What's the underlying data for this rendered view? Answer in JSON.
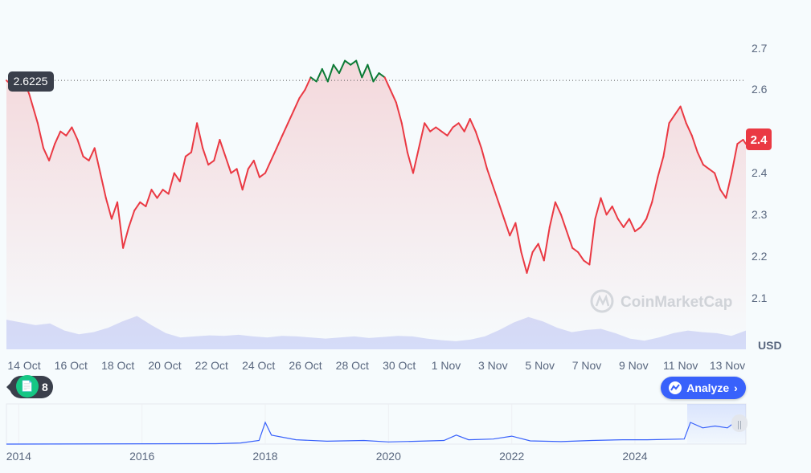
{
  "chart_data": {
    "type": "line",
    "ylim": [
      2.1,
      2.7
    ],
    "yticks": [
      "2.7",
      "2.6",
      "2.4",
      "2.4",
      "2.3",
      "2.2",
      "2.1"
    ],
    "yunit": "USD",
    "xticks": [
      "14 Oct",
      "16 Oct",
      "18 Oct",
      "20 Oct",
      "22 Oct",
      "24 Oct",
      "26 Oct",
      "28 Oct",
      "30 Oct",
      "1 Nov",
      "3 Nov",
      "5 Nov",
      "7 Nov",
      "9 Nov",
      "11 Nov",
      "13 Nov"
    ],
    "reference_label": "2.6225",
    "reference_value": 2.6225,
    "current_label": "2.4",
    "price_points": [
      [
        0,
        2.6225
      ],
      [
        0.3,
        2.605
      ],
      [
        0.6,
        2.625
      ],
      [
        0.8,
        2.59
      ],
      [
        1.1,
        2.52
      ],
      [
        1.3,
        2.46
      ],
      [
        1.5,
        2.43
      ],
      [
        1.7,
        2.47
      ],
      [
        1.9,
        2.5
      ],
      [
        2.1,
        2.49
      ],
      [
        2.3,
        2.51
      ],
      [
        2.5,
        2.48
      ],
      [
        2.7,
        2.44
      ],
      [
        2.9,
        2.43
      ],
      [
        3.1,
        2.46
      ],
      [
        3.3,
        2.4
      ],
      [
        3.5,
        2.34
      ],
      [
        3.7,
        2.29
      ],
      [
        3.9,
        2.33
      ],
      [
        4.1,
        2.22
      ],
      [
        4.3,
        2.27
      ],
      [
        4.5,
        2.31
      ],
      [
        4.7,
        2.33
      ],
      [
        4.9,
        2.32
      ],
      [
        5.1,
        2.36
      ],
      [
        5.3,
        2.34
      ],
      [
        5.5,
        2.36
      ],
      [
        5.7,
        2.35
      ],
      [
        5.9,
        2.4
      ],
      [
        6.1,
        2.38
      ],
      [
        6.3,
        2.44
      ],
      [
        6.5,
        2.45
      ],
      [
        6.7,
        2.52
      ],
      [
        6.9,
        2.46
      ],
      [
        7.1,
        2.42
      ],
      [
        7.3,
        2.43
      ],
      [
        7.5,
        2.48
      ],
      [
        7.7,
        2.44
      ],
      [
        7.9,
        2.4
      ],
      [
        8.1,
        2.41
      ],
      [
        8.3,
        2.36
      ],
      [
        8.5,
        2.41
      ],
      [
        8.7,
        2.43
      ],
      [
        8.9,
        2.39
      ],
      [
        9.1,
        2.4
      ],
      [
        9.3,
        2.43
      ],
      [
        9.5,
        2.46
      ],
      [
        9.7,
        2.49
      ],
      [
        9.9,
        2.52
      ],
      [
        10.1,
        2.55
      ],
      [
        10.3,
        2.58
      ],
      [
        10.5,
        2.6
      ],
      [
        10.7,
        2.63
      ],
      [
        10.9,
        2.62
      ],
      [
        11.1,
        2.65
      ],
      [
        11.3,
        2.62
      ],
      [
        11.5,
        2.66
      ],
      [
        11.7,
        2.64
      ],
      [
        11.9,
        2.67
      ],
      [
        12.1,
        2.66
      ],
      [
        12.3,
        2.67
      ],
      [
        12.5,
        2.63
      ],
      [
        12.7,
        2.66
      ],
      [
        12.9,
        2.62
      ],
      [
        13.1,
        2.64
      ],
      [
        13.3,
        2.63
      ],
      [
        13.5,
        2.6
      ],
      [
        13.7,
        2.57
      ],
      [
        13.9,
        2.52
      ],
      [
        14.1,
        2.45
      ],
      [
        14.3,
        2.4
      ],
      [
        14.5,
        2.46
      ],
      [
        14.7,
        2.52
      ],
      [
        14.9,
        2.5
      ],
      [
        15.1,
        2.51
      ],
      [
        15.3,
        2.5
      ],
      [
        15.5,
        2.49
      ],
      [
        15.7,
        2.51
      ],
      [
        15.9,
        2.52
      ],
      [
        16.1,
        2.5
      ],
      [
        16.3,
        2.53
      ],
      [
        16.5,
        2.5
      ],
      [
        16.7,
        2.46
      ],
      [
        16.9,
        2.41
      ],
      [
        17.1,
        2.37
      ],
      [
        17.3,
        2.33
      ],
      [
        17.5,
        2.29
      ],
      [
        17.7,
        2.25
      ],
      [
        17.9,
        2.28
      ],
      [
        18.1,
        2.21
      ],
      [
        18.3,
        2.16
      ],
      [
        18.5,
        2.21
      ],
      [
        18.7,
        2.23
      ],
      [
        18.9,
        2.19
      ],
      [
        19.1,
        2.27
      ],
      [
        19.3,
        2.33
      ],
      [
        19.5,
        2.3
      ],
      [
        19.7,
        2.26
      ],
      [
        19.9,
        2.22
      ],
      [
        20.1,
        2.21
      ],
      [
        20.3,
        2.19
      ],
      [
        20.5,
        2.18
      ],
      [
        20.7,
        2.29
      ],
      [
        20.9,
        2.34
      ],
      [
        21.1,
        2.3
      ],
      [
        21.3,
        2.32
      ],
      [
        21.5,
        2.29
      ],
      [
        21.7,
        2.27
      ],
      [
        21.9,
        2.29
      ],
      [
        22.1,
        2.26
      ],
      [
        22.3,
        2.27
      ],
      [
        22.5,
        2.29
      ],
      [
        22.7,
        2.33
      ],
      [
        22.9,
        2.39
      ],
      [
        23.1,
        2.44
      ],
      [
        23.3,
        2.52
      ],
      [
        23.5,
        2.54
      ],
      [
        23.7,
        2.56
      ],
      [
        23.9,
        2.52
      ],
      [
        24.1,
        2.49
      ],
      [
        24.3,
        2.45
      ],
      [
        24.5,
        2.42
      ],
      [
        24.7,
        2.41
      ],
      [
        24.9,
        2.4
      ],
      [
        25.1,
        2.36
      ],
      [
        25.3,
        2.34
      ],
      [
        25.5,
        2.4
      ],
      [
        25.7,
        2.47
      ],
      [
        25.9,
        2.48
      ],
      [
        26.0,
        2.47
      ]
    ],
    "volume_points": [
      0.55,
      0.5,
      0.45,
      0.48,
      0.35,
      0.28,
      0.32,
      0.4,
      0.52,
      0.62,
      0.45,
      0.3,
      0.22,
      0.24,
      0.26,
      0.25,
      0.27,
      0.24,
      0.22,
      0.25,
      0.24,
      0.22,
      0.2,
      0.22,
      0.24,
      0.21,
      0.23,
      0.25,
      0.24,
      0.2,
      0.17,
      0.15,
      0.18,
      0.24,
      0.36,
      0.5,
      0.6,
      0.52,
      0.4,
      0.32,
      0.36,
      0.38,
      0.3,
      0.2,
      0.16,
      0.22,
      0.3,
      0.35,
      0.32,
      0.3,
      0.25,
      0.35
    ],
    "overview_xticks": [
      "2014",
      "2016",
      "2018",
      "2020",
      "2022",
      "2024"
    ],
    "overview_points": [
      [
        2013.8,
        0.0
      ],
      [
        2017.2,
        0.01
      ],
      [
        2017.6,
        0.03
      ],
      [
        2017.9,
        0.1
      ],
      [
        2018.0,
        0.6
      ],
      [
        2018.1,
        0.25
      ],
      [
        2018.5,
        0.12
      ],
      [
        2019.0,
        0.08
      ],
      [
        2019.6,
        0.1
      ],
      [
        2020.0,
        0.06
      ],
      [
        2020.5,
        0.08
      ],
      [
        2020.9,
        0.1
      ],
      [
        2021.1,
        0.25
      ],
      [
        2021.3,
        0.12
      ],
      [
        2021.7,
        0.14
      ],
      [
        2022.0,
        0.22
      ],
      [
        2022.3,
        0.09
      ],
      [
        2022.8,
        0.07
      ],
      [
        2023.3,
        0.1
      ],
      [
        2023.8,
        0.12
      ],
      [
        2024.2,
        0.12
      ],
      [
        2024.8,
        0.14
      ],
      [
        2024.9,
        0.6
      ],
      [
        2025.1,
        0.45
      ],
      [
        2025.3,
        0.5
      ],
      [
        2025.5,
        0.45
      ],
      [
        2025.6,
        0.58
      ],
      [
        2025.8,
        0.5
      ]
    ],
    "watermark": "CoinMarketCap",
    "colors": {
      "down": "#ea3943",
      "up": "#0b7a35",
      "volume": "#c8cff5",
      "overview": "#3861fb"
    }
  },
  "controls": {
    "analyze_label": "Analyze",
    "analyze_chevron": "›",
    "notes_count": "8",
    "notes_icon": "document-icon",
    "analyze_icon": "chart-ai-icon"
  }
}
